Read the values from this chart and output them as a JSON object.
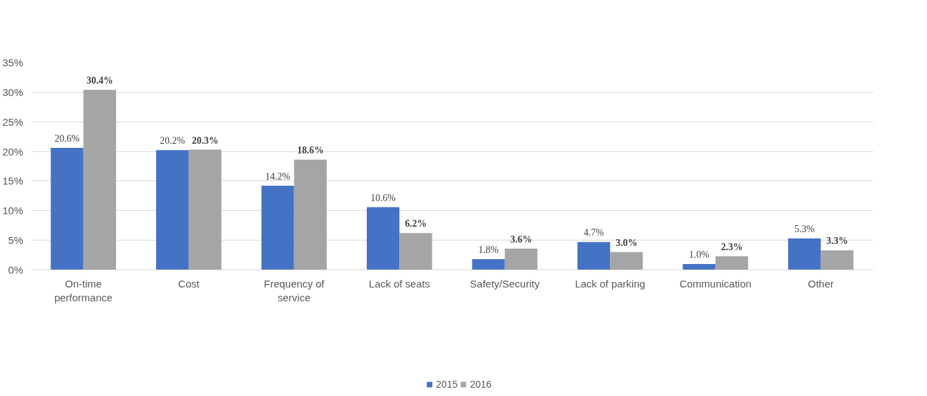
{
  "chart_data": {
    "type": "bar",
    "categories": [
      "On-time performance",
      "Cost",
      "Frequency of service",
      "Lack of seats",
      "Safety/Security",
      "Lack of parking",
      "Communication",
      "Other"
    ],
    "series": [
      {
        "name": "2015",
        "color": "#4472c4",
        "values": [
          20.6,
          20.2,
          14.2,
          10.6,
          1.8,
          4.7,
          1.0,
          5.3
        ],
        "value_labels": [
          "20.6%",
          "20.2%",
          "14.2%",
          "10.6%",
          "1.8%",
          "4.7%",
          "1.0%",
          "5.3%"
        ]
      },
      {
        "name": "2016",
        "color": "#a5a5a5",
        "values": [
          30.4,
          20.3,
          18.6,
          6.2,
          3.6,
          3.0,
          2.3,
          3.3
        ],
        "value_labels": [
          "30.4%",
          "20.3%",
          "18.6%",
          "6.2%",
          "3.6%",
          "3.0%",
          "2.3%",
          "3.3%"
        ]
      }
    ],
    "ylim": [
      0,
      35
    ],
    "yticks": [
      {
        "value": 0,
        "label": "0%"
      },
      {
        "value": 5,
        "label": "5%"
      },
      {
        "value": 10,
        "label": "10%"
      },
      {
        "value": 15,
        "label": "15%"
      },
      {
        "value": 20,
        "label": "20%"
      },
      {
        "value": 25,
        "label": "25%"
      },
      {
        "value": 30,
        "label": "30%"
      },
      {
        "value": 35,
        "label": "35%"
      }
    ],
    "grid": "y",
    "legend": "bottom"
  }
}
